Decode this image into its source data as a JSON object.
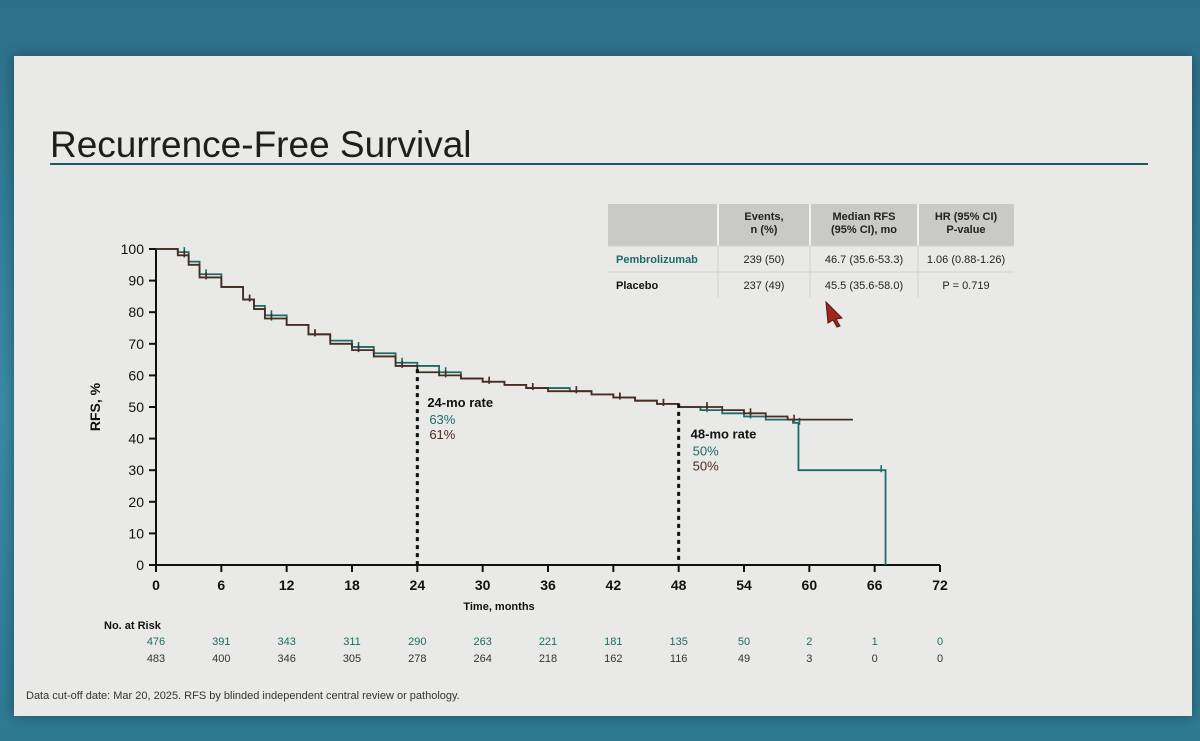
{
  "slide": {
    "title": "Recurrence-Free Survival",
    "footnote": "Data cut-off date: Mar 20, 2025. RFS by blinded independent central review or pathology."
  },
  "colors": {
    "pembrolizumab": "#1d6b68",
    "placebo": "#4a2a22",
    "rule": "#1c5a66",
    "table_header": "#c9c9c7"
  },
  "table": {
    "headers": [
      "Events, n (%)",
      "Median RFS (95% CI), mo",
      "HR (95% CI) P-value"
    ],
    "rows": [
      {
        "arm": "Pembrolizumab",
        "events": "239 (50)",
        "median": "46.7 (35.6-53.3)",
        "hr": "1.06 (0.88-1.26)"
      },
      {
        "arm": "Placebo",
        "events": "237 (49)",
        "median": "45.5 (35.6-58.0)",
        "hr": "P = 0.719"
      }
    ]
  },
  "chart_data": {
    "type": "line",
    "title": "",
    "xlabel": "Time, months",
    "ylabel": "RFS, %",
    "xlim": [
      0,
      72
    ],
    "ylim": [
      0,
      100
    ],
    "x_ticks": [
      0,
      6,
      12,
      18,
      24,
      30,
      36,
      42,
      48,
      54,
      60,
      66,
      72
    ],
    "y_ticks": [
      0,
      10,
      20,
      30,
      40,
      50,
      60,
      70,
      80,
      90,
      100
    ],
    "series": [
      {
        "name": "Pembrolizumab",
        "step": true,
        "x": [
          0,
          2,
          3,
          4,
          6,
          8,
          9,
          10,
          12,
          14,
          16,
          18,
          20,
          22,
          24,
          26,
          28,
          30,
          32,
          34,
          36,
          38,
          40,
          42,
          44,
          46,
          48,
          50,
          52,
          54,
          56,
          58.5,
          59,
          66,
          67
        ],
        "y": [
          100,
          99,
          96,
          92,
          88,
          84,
          82,
          79,
          76,
          73,
          71,
          69,
          67,
          64,
          63,
          61,
          59,
          58,
          57,
          56,
          56,
          55,
          54,
          53,
          52,
          51,
          50,
          49,
          48,
          47,
          46,
          45,
          30,
          30,
          0
        ]
      },
      {
        "name": "Placebo",
        "step": true,
        "x": [
          0,
          2,
          3,
          4,
          6,
          8,
          9,
          10,
          12,
          14,
          16,
          18,
          20,
          22,
          24,
          26,
          28,
          30,
          32,
          34,
          36,
          38,
          40,
          42,
          44,
          46,
          48,
          50,
          52,
          54,
          56,
          58,
          60,
          64
        ],
        "y": [
          100,
          98,
          95,
          91,
          88,
          84,
          81,
          78,
          76,
          73,
          70,
          68,
          66,
          63,
          61,
          60,
          59,
          58,
          57,
          56,
          55,
          55,
          54,
          53,
          52,
          51,
          50,
          50,
          49,
          48,
          47,
          46,
          46,
          46
        ]
      }
    ],
    "annotations": [
      {
        "x": 24,
        "heading": "24-mo rate",
        "values": [
          "63%",
          "61%"
        ]
      },
      {
        "x": 48,
        "heading": "48-mo rate",
        "values": [
          "50%",
          "50%"
        ]
      }
    ],
    "at_risk": {
      "label": "No. at Risk",
      "times": [
        0,
        6,
        12,
        18,
        24,
        30,
        36,
        42,
        48,
        54,
        60,
        66,
        72
      ],
      "rows": [
        [
          476,
          391,
          343,
          311,
          290,
          263,
          221,
          181,
          135,
          50,
          2,
          1,
          0
        ],
        [
          483,
          400,
          346,
          305,
          278,
          264,
          218,
          162,
          116,
          49,
          3,
          0,
          0
        ]
      ]
    }
  }
}
